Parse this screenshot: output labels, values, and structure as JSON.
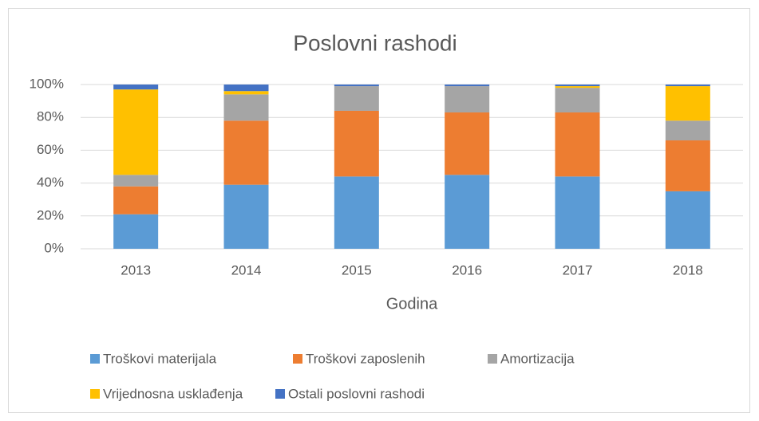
{
  "chart_data": {
    "type": "stacked_bar",
    "title": "Poslovni rashodi",
    "x_label": "Godina",
    "categories": [
      "2013",
      "2014",
      "2015",
      "2016",
      "2017",
      "2018"
    ],
    "series": [
      {
        "name": "Troškovi materijala",
        "color": "#5b9bd5",
        "values": [
          21,
          39,
          44,
          45,
          44,
          35
        ]
      },
      {
        "name": "Troškovi zaposlenih",
        "color": "#ed7d31",
        "values": [
          17,
          39,
          40,
          38,
          39,
          31
        ]
      },
      {
        "name": "Amortizacija",
        "color": "#a5a5a5",
        "values": [
          7,
          16,
          15,
          16,
          15,
          12
        ]
      },
      {
        "name": "Vrijednosna usklađenja",
        "color": "#ffc000",
        "values": [
          52,
          2,
          0,
          0,
          1,
          21
        ]
      },
      {
        "name": "Ostali poslovni rashodi",
        "color": "#4472c4",
        "values": [
          3,
          4,
          1,
          1,
          1,
          1
        ]
      }
    ],
    "ylim": [
      0,
      100
    ],
    "yticks": [
      {
        "value": 0,
        "label": "0%"
      },
      {
        "value": 20,
        "label": "20%"
      },
      {
        "value": 40,
        "label": "40%"
      },
      {
        "value": 60,
        "label": "60%"
      },
      {
        "value": 80,
        "label": "80%"
      },
      {
        "value": 100,
        "label": "100%"
      }
    ],
    "grid": true,
    "legend": "bottom"
  }
}
